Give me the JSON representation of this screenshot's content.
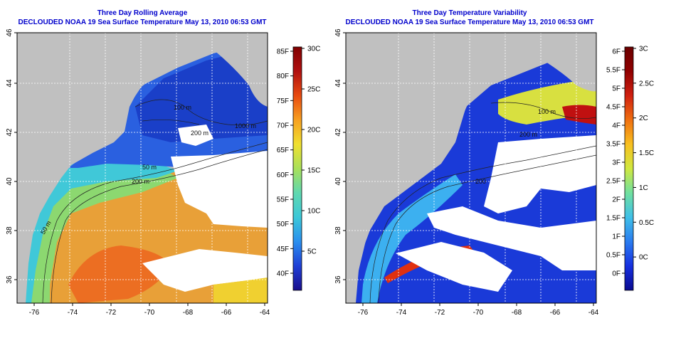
{
  "left_panel": {
    "title": "Three Day Rolling Average",
    "subtitle": "DECLOUDED NOAA 19 Sea Surface Temperature May 13, 2010 06:53 GMT",
    "colorbar": {
      "fahrenheit": [
        "85F",
        "80F",
        "75F",
        "70F",
        "65F",
        "60F",
        "55F",
        "50F",
        "45F",
        "40F"
      ],
      "celsius": [
        "30C",
        "25C",
        "20C",
        "15C",
        "10C",
        "5C"
      ],
      "stops": [
        "#1a0f8c",
        "#1f3fd6",
        "#2a8fee",
        "#3cc8d8",
        "#5fd8b0",
        "#a8e05a",
        "#f0e030",
        "#f7a020",
        "#e84a10",
        "#b01010",
        "#800000"
      ]
    },
    "depth_labels": [
      "100 m",
      "200 m",
      "1000 m",
      "50 m",
      "200 m",
      "50 m"
    ]
  },
  "right_panel": {
    "title": "Three Day Temperature Variability",
    "subtitle": "DECLOUDED NOAA 19 Sea Surface Temperature May 13, 2010 06:53 GMT",
    "colorbar": {
      "fahrenheit": [
        "6F",
        "5.5F",
        "5F",
        "4.5F",
        "4F",
        "3.5F",
        "3F",
        "2.5F",
        "2F",
        "1.5F",
        "1F",
        "0.5F",
        "0F"
      ],
      "celsius": [
        "3C",
        "2.5C",
        "2C",
        "1.5C",
        "1C",
        "0.5C",
        "0C"
      ],
      "stops": [
        "#0a0a90",
        "#1630e0",
        "#2a7cf0",
        "#40c0e8",
        "#70e0a0",
        "#d0e840",
        "#f8c020",
        "#f07010",
        "#d02010",
        "#900000",
        "#6a0000"
      ]
    },
    "depth_labels": [
      "100 m",
      "200 m",
      "200"
    ]
  },
  "axes": {
    "latitude_ticks": [
      "46",
      "44",
      "42",
      "40",
      "38",
      "36"
    ],
    "longitude_ticks": [
      "-76",
      "-74",
      "-72",
      "-70",
      "-68",
      "-66",
      "-64"
    ]
  },
  "colors": {
    "title": "#0000cc",
    "land": "#c0c0c0",
    "cloud": "#ffffff"
  }
}
